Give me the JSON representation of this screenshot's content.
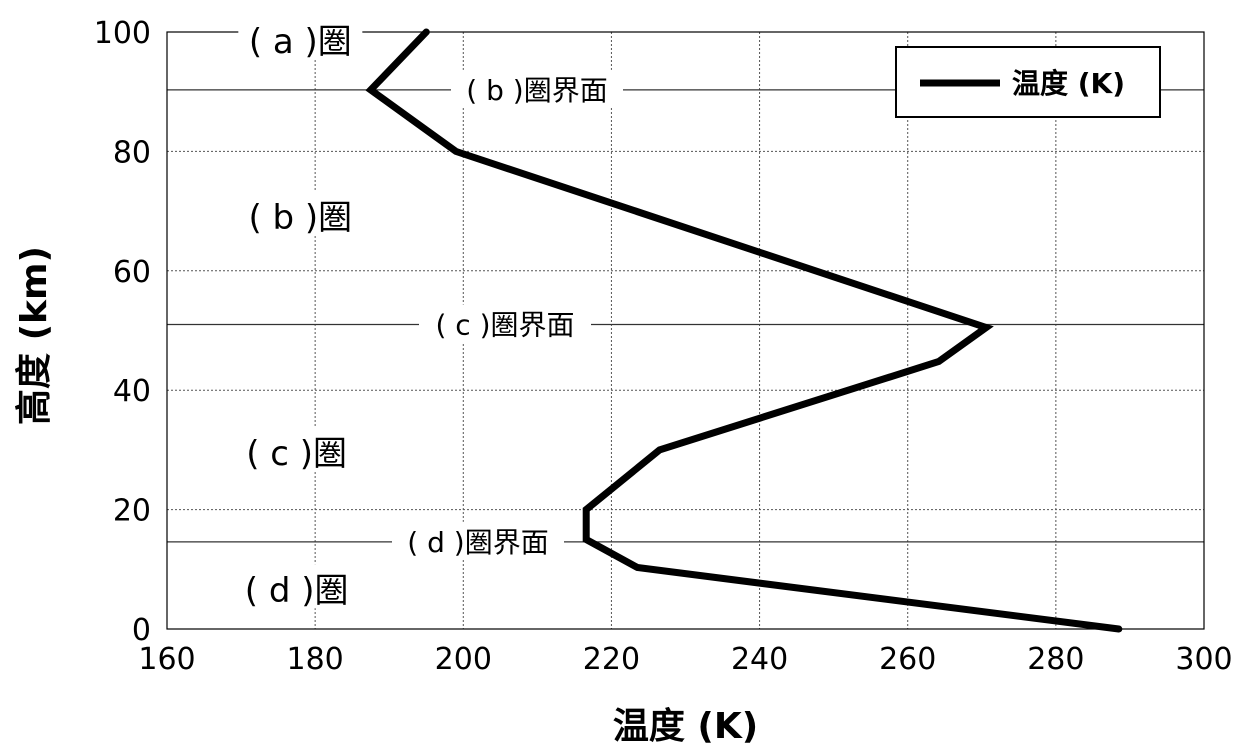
{
  "chart_data": {
    "type": "line",
    "title": "",
    "xlabel": "温度 (K)",
    "ylabel": "高度 (km)",
    "xlim": [
      160,
      300
    ],
    "ylim": [
      0,
      100
    ],
    "x_ticks": [
      "160",
      "180",
      "200",
      "220",
      "240",
      "260",
      "280",
      "300"
    ],
    "y_ticks": [
      "0",
      "20",
      "40",
      "60",
      "80",
      "100"
    ],
    "grid": "dotted",
    "legend": {
      "position": "top-right",
      "entries": [
        "温度 (K)"
      ]
    },
    "series": [
      {
        "name": "温度 (K)",
        "color": "#000000",
        "points": [
          {
            "x": 288.5,
            "y": 0
          },
          {
            "x": 223.5,
            "y": 10.3
          },
          {
            "x": 216.6,
            "y": 15
          },
          {
            "x": 216.6,
            "y": 20
          },
          {
            "x": 226.5,
            "y": 30
          },
          {
            "x": 264.2,
            "y": 44.8
          },
          {
            "x": 270.6,
            "y": 50.5
          },
          {
            "x": 199.0,
            "y": 80
          },
          {
            "x": 187.5,
            "y": 90.3
          },
          {
            "x": 195.0,
            "y": 100
          }
        ]
      }
    ],
    "boundary_lines": [
      {
        "y": 90.3,
        "label": "( b )圏界面"
      },
      {
        "y": 51,
        "label": "( c )圏界面"
      },
      {
        "y": 14.6,
        "label": "( d )圏界面"
      }
    ],
    "region_labels": [
      {
        "text": "( a )圏",
        "x": 178,
        "y": 98.5
      },
      {
        "text": "( b )圏",
        "x": 178,
        "y": 69
      },
      {
        "text": "( c )圏",
        "x": 177.5,
        "y": 29.5
      },
      {
        "text": "( d )圏",
        "x": 177.5,
        "y": 6.5
      }
    ]
  }
}
